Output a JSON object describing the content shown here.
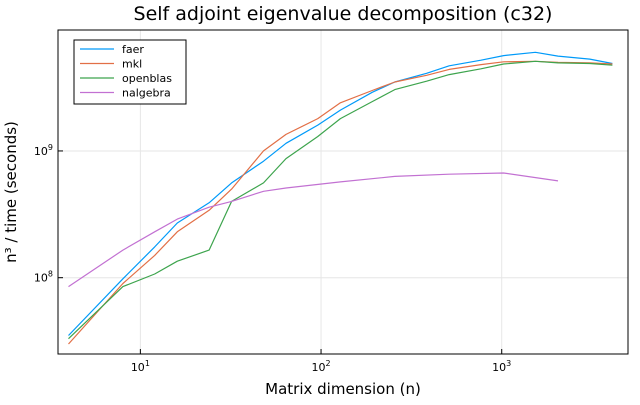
{
  "chart_data": {
    "type": "line",
    "title": "Self adjoint eigenvalue decomposition (c32)",
    "xlabel": "Matrix dimension (n)",
    "ylabel": "n³ / time (seconds)",
    "x_scale": "log10",
    "y_scale": "log10",
    "xlim": [
      3.5,
      5000
    ],
    "ylim": [
      25000000,
      9000000000
    ],
    "x_ticks": [
      {
        "value": 10,
        "base": "10",
        "exp": "1"
      },
      {
        "value": 100,
        "base": "10",
        "exp": "2"
      },
      {
        "value": 1000,
        "base": "10",
        "exp": "3"
      }
    ],
    "y_ticks": [
      {
        "value": 100000000,
        "base": "10",
        "exp": "8"
      },
      {
        "value": 1000000000,
        "base": "10",
        "exp": "9"
      }
    ],
    "grid": true,
    "legend_position": "top-left",
    "series": [
      {
        "name": "faer",
        "color": "#009af9",
        "x": [
          4,
          8,
          12,
          16,
          24,
          32,
          48,
          64,
          96,
          128,
          192,
          256,
          384,
          512,
          768,
          1024,
          1536,
          2048,
          3072,
          4096
        ],
        "y": [
          35000000,
          98000000,
          175000000,
          270000000,
          390000000,
          560000000,
          830000000,
          1150000000,
          1600000000,
          2100000000,
          2900000000,
          3500000000,
          4100000000,
          4700000000,
          5200000000,
          5650000000,
          6000000000,
          5600000000,
          5300000000,
          4900000000
        ]
      },
      {
        "name": "mkl",
        "color": "#e26f46",
        "x": [
          4,
          8,
          12,
          16,
          24,
          32,
          48,
          64,
          96,
          128,
          192,
          256,
          384,
          512,
          768,
          1024,
          1536,
          2048,
          3072,
          4096
        ],
        "y": [
          30000000,
          90000000,
          150000000,
          230000000,
          340000000,
          500000000,
          1000000000,
          1350000000,
          1800000000,
          2400000000,
          3000000000,
          3500000000,
          3950000000,
          4400000000,
          4800000000,
          5050000000,
          5100000000,
          5000000000,
          4950000000,
          4850000000
        ]
      },
      {
        "name": "openblas",
        "color": "#3da44d",
        "x": [
          4,
          8,
          12,
          16,
          24,
          32,
          48,
          64,
          96,
          128,
          192,
          256,
          384,
          512,
          768,
          1024,
          1536,
          2048,
          3072,
          4096
        ],
        "y": [
          33000000,
          85000000,
          107000000,
          135000000,
          165000000,
          400000000,
          560000000,
          870000000,
          1300000000,
          1800000000,
          2450000000,
          3050000000,
          3550000000,
          4000000000,
          4450000000,
          4850000000,
          5100000000,
          4950000000,
          4900000000,
          4750000000
        ]
      },
      {
        "name": "nalgebra",
        "color": "#c271d2",
        "x": [
          4,
          8,
          12,
          16,
          24,
          32,
          48,
          64,
          128,
          256,
          512,
          1024,
          2048
        ],
        "y": [
          85000000,
          165000000,
          230000000,
          290000000,
          360000000,
          400000000,
          480000000,
          510000000,
          570000000,
          630000000,
          655000000,
          670000000,
          580000000
        ]
      }
    ]
  }
}
